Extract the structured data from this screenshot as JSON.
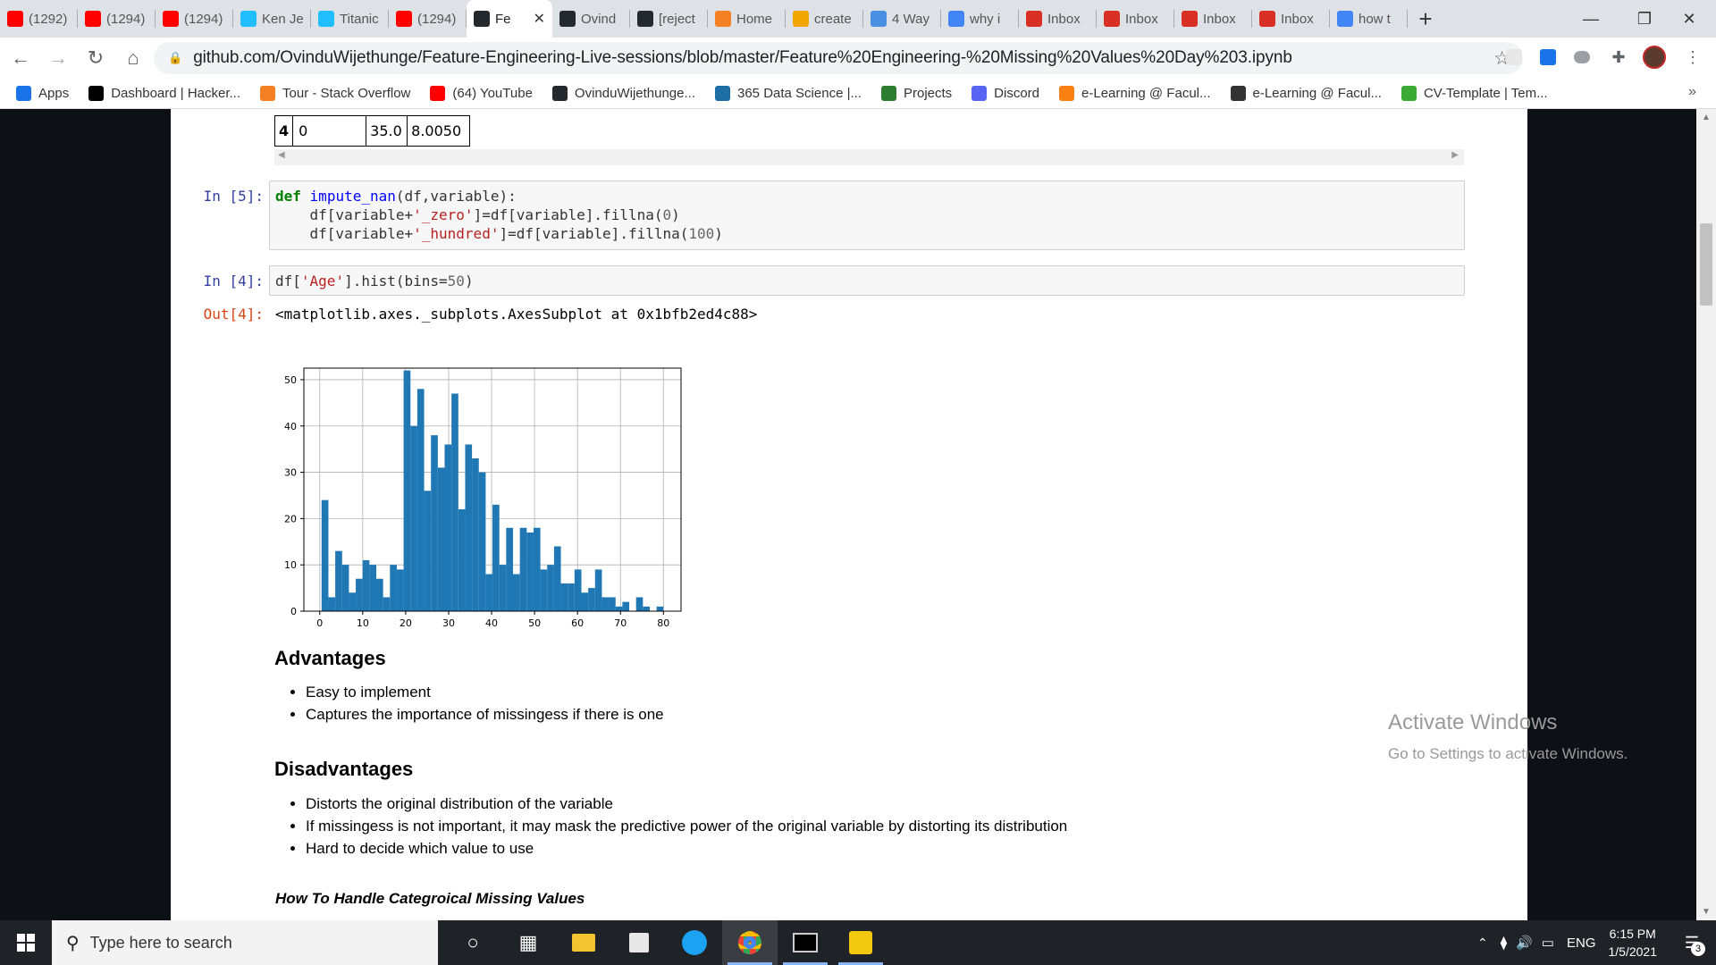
{
  "browser": {
    "tabs": [
      {
        "label": "(1292)",
        "icon": "youtube-icon",
        "color": "#ff0000"
      },
      {
        "label": "(1294)",
        "icon": "youtube-icon",
        "color": "#ff0000"
      },
      {
        "label": "(1294)",
        "icon": "youtube-icon",
        "color": "#ff0000"
      },
      {
        "label": "Ken Je",
        "icon": "kaggle-icon",
        "color": "#20beff"
      },
      {
        "label": "Titanic",
        "icon": "kaggle-icon",
        "color": "#20beff"
      },
      {
        "label": "(1294)",
        "icon": "youtube-icon",
        "color": "#ff0000"
      },
      {
        "label": "Fe",
        "icon": "github-icon",
        "color": "#24292e"
      },
      {
        "label": "Ovind",
        "icon": "github-icon",
        "color": "#24292e"
      },
      {
        "label": "[reject",
        "icon": "github-icon",
        "color": "#24292e"
      },
      {
        "label": "Home",
        "icon": "home-icon",
        "color": "#f48024"
      },
      {
        "label": "create",
        "icon": "note-icon",
        "color": "#f0a500"
      },
      {
        "label": "4 Way",
        "icon": "cloud-icon",
        "color": "#4a90e2"
      },
      {
        "label": "why i",
        "icon": "google-icon",
        "color": "#4285f4"
      },
      {
        "label": "Inbox",
        "icon": "gmail-icon",
        "color": "#d93025"
      },
      {
        "label": "Inbox",
        "icon": "gmail-icon",
        "color": "#d93025"
      },
      {
        "label": "Inbox",
        "icon": "gmail-icon",
        "color": "#d93025"
      },
      {
        "label": "Inbox",
        "icon": "gmail-icon",
        "color": "#d93025"
      },
      {
        "label": "how t",
        "icon": "google-icon",
        "color": "#4285f4"
      }
    ],
    "url": "github.com/OvinduWijethunge/Feature-Engineering-Live-sessions/blob/master/Feature%20Engineering-%20Missing%20Values%20Day%203.ipynb",
    "bookmarks": [
      {
        "label": "Apps",
        "icon": "apps-grid-icon",
        "color": "#1a73e8"
      },
      {
        "label": "Dashboard | Hacker...",
        "icon": "hackerrank-icon",
        "color": "#000000"
      },
      {
        "label": "Tour - Stack Overflow",
        "icon": "stackoverflow-icon",
        "color": "#f48024"
      },
      {
        "label": "(64) YouTube",
        "icon": "youtube-icon",
        "color": "#ff0000"
      },
      {
        "label": "OvinduWijethunge...",
        "icon": "github-icon",
        "color": "#24292e"
      },
      {
        "label": "365 Data Science |...",
        "icon": "datascience-icon",
        "color": "#1c6ea4"
      },
      {
        "label": "Projects",
        "icon": "projects-icon",
        "color": "#2e7d32"
      },
      {
        "label": "Discord",
        "icon": "discord-icon",
        "color": "#5865f2"
      },
      {
        "label": "e-Learning @ Facul...",
        "icon": "moodle-icon",
        "color": "#f98012"
      },
      {
        "label": "e-Learning @ Facul...",
        "icon": "globe-icon",
        "color": "#333333"
      },
      {
        "label": "CV-Template | Tem...",
        "icon": "cv-icon",
        "color": "#3ba935"
      }
    ]
  },
  "notebook": {
    "table_row": [
      "4",
      "0",
      "35.0",
      "8.0050"
    ],
    "cell5": {
      "prompt": "In [5]:",
      "lines": [
        [
          [
            "kw",
            "def"
          ],
          [
            "pl",
            " "
          ],
          [
            "fn",
            "impute_nan"
          ],
          [
            "pl",
            "(df,variable):"
          ]
        ],
        [
          [
            "pl",
            "    df[variable+"
          ],
          [
            "st",
            "'_zero'"
          ],
          [
            "pl",
            "]=df[variable].fillna("
          ],
          [
            "nm",
            "0"
          ],
          [
            "pl",
            ")"
          ]
        ],
        [
          [
            "pl",
            "    df[variable+"
          ],
          [
            "st",
            "'_hundred'"
          ],
          [
            "pl",
            "]=df[variable].fillna("
          ],
          [
            "nm",
            "100"
          ],
          [
            "pl",
            ")"
          ]
        ]
      ]
    },
    "cell4": {
      "prompt": "In [4]:",
      "lines": [
        [
          [
            "pl",
            "df["
          ],
          [
            "st",
            "'Age'"
          ],
          [
            "pl",
            "].hist(bins="
          ],
          [
            "nm",
            "50"
          ],
          [
            "pl",
            ")"
          ]
        ]
      ],
      "out_prompt": "Out[4]:",
      "output": "<matplotlib.axes._subplots.AxesSubplot at 0x1bfb2ed4c88>"
    },
    "advantages_title": "Advantages",
    "advantages": [
      "Easy to implement",
      "Captures the importance of missingess if there is one"
    ],
    "disadvantages_title": "Disadvantages",
    "disadvantages": [
      "Distorts the original distribution of the variable",
      "If missingess is not important, it may mask the predictive power of the original variable by distorting its distribution",
      "Hard to decide which value to use"
    ],
    "next_heading": "How To Handle Categroical Missing Values"
  },
  "chart_data": {
    "type": "bar",
    "title": "",
    "xlabel": "",
    "ylabel": "",
    "bar_color": "#1f77b4",
    "grid": true,
    "xlim": [
      -3.7,
      84.1
    ],
    "ylim": [
      0,
      52.5
    ],
    "xticks": [
      0,
      10,
      20,
      30,
      40,
      50,
      60,
      70,
      80
    ],
    "yticks": [
      0,
      10,
      20,
      30,
      40,
      50
    ],
    "bin_edges_start": 0.42,
    "bin_width": 1.5916,
    "values": [
      24,
      3,
      13,
      10,
      4,
      7,
      11,
      10,
      7,
      3,
      10,
      9,
      52,
      40,
      48,
      26,
      38,
      31,
      36,
      47,
      22,
      36,
      33,
      30,
      8,
      23,
      10,
      18,
      8,
      18,
      17,
      18,
      9,
      10,
      14,
      6,
      6,
      9,
      4,
      5,
      9,
      3,
      3,
      1,
      2,
      0,
      3,
      1,
      0,
      1
    ]
  },
  "watermark": {
    "line1": "Activate Windows",
    "line2": "Go to Settings to activate Windows."
  },
  "taskbar": {
    "search_placeholder": "Type here to search",
    "lang": "ENG",
    "time": "6:15 PM",
    "date": "1/5/2021",
    "notifications": "3"
  }
}
